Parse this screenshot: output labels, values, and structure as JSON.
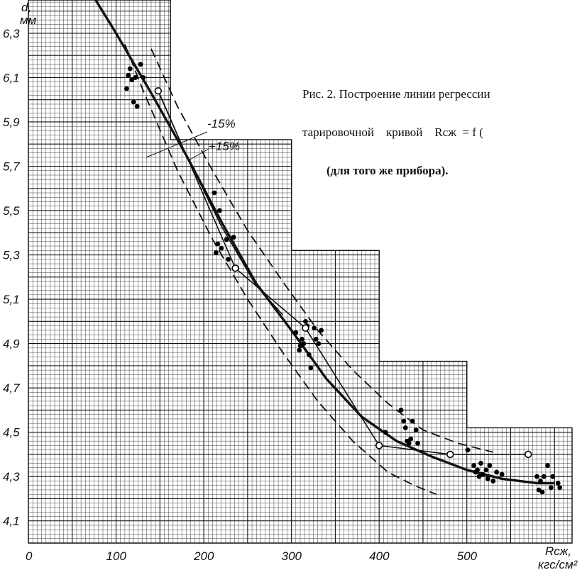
{
  "caption": {
    "line1": "Рис. 2. Построение линии регрессии",
    "line2": "тарировочной    кривой    Rсж  = f (",
    "line3": "(для того же прибора)."
  },
  "chart_data": {
    "type": "scatter",
    "title": "",
    "ylabel_line1": "d,",
    "ylabel_line2": "мм",
    "xlabel_line1": "Rсж,",
    "xlabel_line2": "кгс/см²",
    "xlim": [
      0,
      620
    ],
    "ylim": [
      4.0,
      6.45
    ],
    "x_ticks": [
      0,
      100,
      200,
      300,
      400,
      500
    ],
    "x_tick_labels": [
      "0",
      "100",
      "200",
      "300",
      "400",
      "500"
    ],
    "y_ticks": [
      4.1,
      4.3,
      4.5,
      4.7,
      4.9,
      5.1,
      5.3,
      5.5,
      5.7,
      5.9,
      6.1,
      6.3
    ],
    "y_tick_labels": [
      "4,1",
      "4,3",
      "4,5",
      "4,7",
      "4,9",
      "5,1",
      "5,3",
      "5,5",
      "5,7",
      "5,9",
      "6,1",
      "6,3"
    ],
    "band_labels": [
      "-15%",
      "+15%"
    ],
    "grid": true,
    "series": [
      {
        "marker": "filled-circle",
        "x": [
          112,
          114,
          116,
          118,
          120,
          122,
          124,
          128,
          131,
          212,
          214,
          216,
          218,
          220,
          226,
          228,
          234,
          305,
          309,
          310,
          312,
          314,
          316,
          318,
          320,
          322,
          326,
          328,
          331,
          334,
          407,
          425,
          428,
          430,
          432,
          434,
          436,
          438,
          442,
          444,
          501,
          508,
          510,
          512,
          514,
          516,
          518,
          522,
          524,
          526,
          530,
          534,
          540,
          580,
          582,
          584,
          586,
          588,
          592,
          596,
          598,
          604,
          606
        ],
        "y": [
          6.05,
          6.11,
          6.14,
          6.09,
          5.99,
          6.1,
          5.97,
          6.16,
          6.1,
          5.58,
          5.31,
          5.35,
          5.5,
          5.33,
          5.37,
          5.28,
          5.38,
          4.95,
          4.87,
          4.89,
          4.92,
          4.9,
          5.0,
          4.98,
          4.85,
          4.79,
          4.97,
          4.92,
          4.9,
          4.96,
          4.5,
          4.6,
          4.55,
          4.52,
          4.46,
          4.45,
          4.47,
          4.55,
          4.51,
          4.45,
          4.42,
          4.35,
          4.32,
          4.33,
          4.3,
          4.36,
          4.31,
          4.33,
          4.29,
          4.35,
          4.28,
          4.32,
          4.31,
          4.3,
          4.24,
          4.28,
          4.23,
          4.3,
          4.35,
          4.25,
          4.3,
          4.27,
          4.25
        ]
      },
      {
        "marker": "open-circle",
        "x": [
          148,
          236,
          316,
          400,
          481,
          570
        ],
        "y": [
          6.04,
          5.24,
          4.97,
          4.44,
          4.4,
          4.4
        ]
      },
      {
        "style": "thick-solid",
        "x": [
          72,
          100,
          140,
          180,
          220,
          260,
          300,
          340,
          380,
          420,
          460,
          500,
          540,
          580,
          600
        ],
        "y": [
          6.48,
          6.3,
          6.03,
          5.75,
          5.45,
          5.17,
          4.96,
          4.74,
          4.57,
          4.46,
          4.39,
          4.33,
          4.29,
          4.27,
          4.27
        ]
      },
      {
        "style": "thin-solid",
        "x": [
          148,
          236,
          316,
          400,
          481,
          570
        ],
        "y": [
          6.04,
          5.24,
          4.97,
          4.44,
          4.4,
          4.4
        ]
      },
      {
        "style": "dashed",
        "x": [
          110,
          130,
          170,
          210,
          250,
          290,
          330,
          370,
          410,
          440,
          465
        ],
        "y": [
          6.25,
          6.05,
          5.68,
          5.37,
          5.1,
          4.86,
          4.64,
          4.46,
          4.32,
          4.26,
          4.22
        ]
      },
      {
        "style": "dashed",
        "x": [
          140,
          170,
          210,
          250,
          290,
          330,
          370,
          410,
          450,
          490,
          530
        ],
        "y": [
          6.23,
          5.97,
          5.68,
          5.41,
          5.18,
          4.96,
          4.78,
          4.63,
          4.51,
          4.45,
          4.41
        ]
      },
      {
        "style": "thin-solid",
        "x": [
          148,
          180,
          220,
          260,
          290
        ],
        "y": [
          6.04,
          5.75,
          5.43,
          5.16,
          5.03
        ]
      }
    ]
  }
}
